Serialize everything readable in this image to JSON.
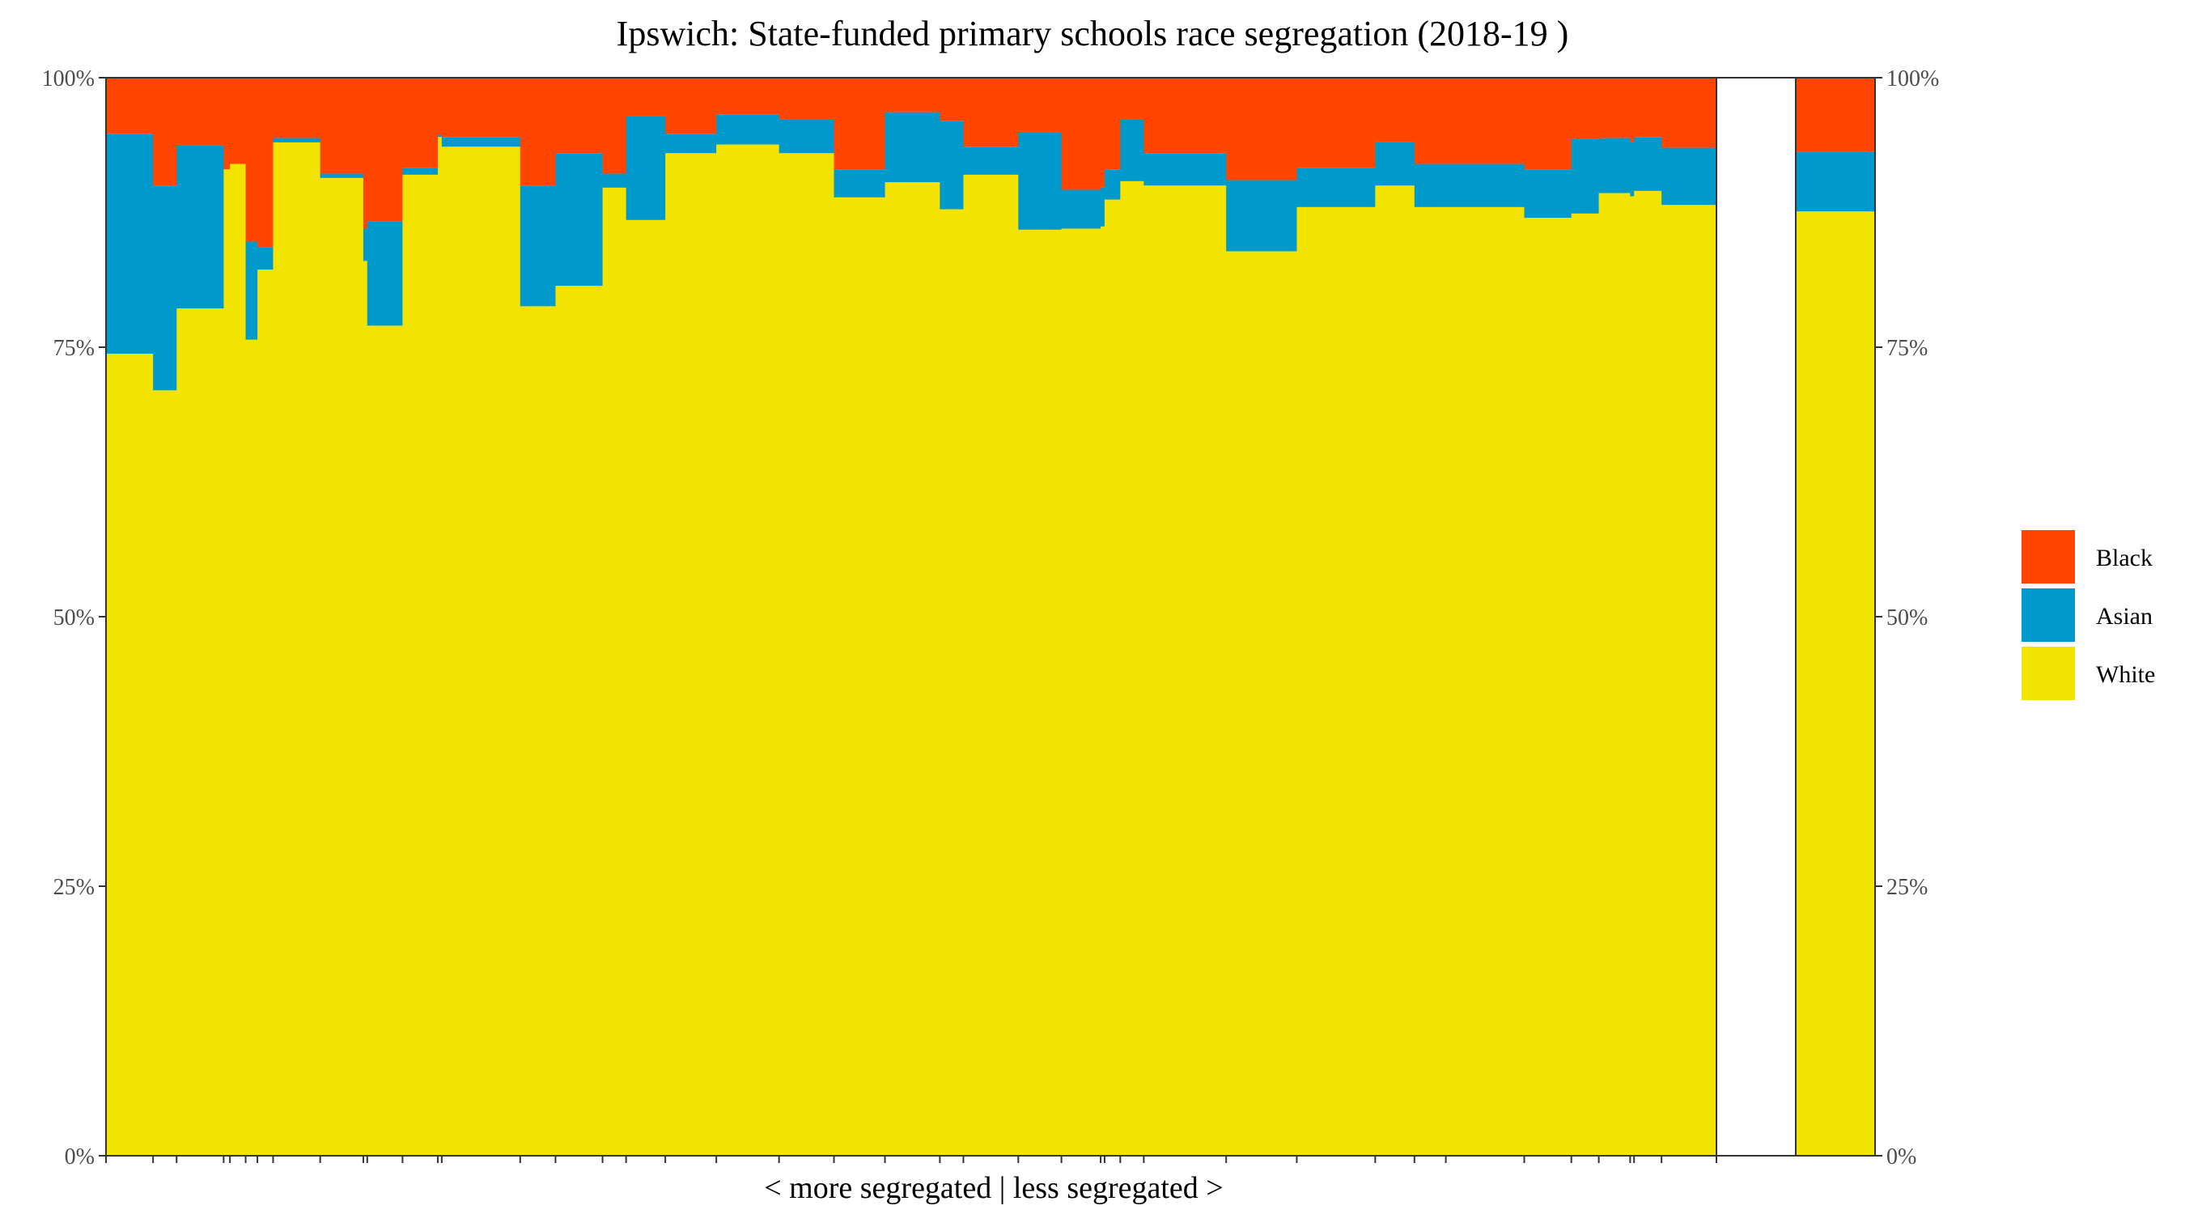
{
  "chart_data": {
    "type": "bar",
    "title": "Ipswich: State-funded primary schools race segregation (2018-19 )",
    "xlabel": "< more segregated | less segregated >",
    "ylabel": "",
    "ylim": [
      0,
      100
    ],
    "y_ticks": [
      "0%",
      "25%",
      "50%",
      "75%",
      "100%"
    ],
    "legend_position": "right",
    "grid": false,
    "colors": {
      "Black": "#FF4500",
      "Asian": "#0099CC",
      "White": "#F2E300"
    },
    "legend": [
      "Black",
      "Asian",
      "White"
    ],
    "schools": {
      "widths": [
        6.0,
        3.0,
        6.0,
        0.8,
        2.0,
        1.5,
        2.0,
        6.0,
        5.5,
        0.5,
        4.5,
        4.5,
        0.5,
        10.0,
        4.5,
        6.0,
        3.0,
        5.0,
        6.5,
        8.0,
        7.0,
        6.5,
        7.0,
        3.0,
        7.0,
        5.5,
        5.0,
        0.5,
        2.0,
        3.0,
        10.5,
        9.0,
        10.0,
        5.0,
        4.0,
        10.0,
        6.0,
        3.5,
        4.0,
        0.5,
        3.5,
        7.0
      ],
      "white": [
        74.4,
        71.0,
        78.6,
        91.5,
        92.0,
        75.7,
        82.2,
        94.0,
        90.7,
        83.0,
        77.0,
        91.0,
        94.5,
        93.6,
        78.8,
        80.7,
        89.8,
        86.8,
        93.0,
        93.8,
        93.0,
        88.9,
        90.3,
        87.8,
        91.0,
        85.9,
        86.0,
        86.2,
        88.7,
        90.4,
        90.0,
        83.9,
        88.0,
        90.0,
        88.0,
        88.0,
        87.0,
        87.4,
        89.3,
        89.0,
        89.5,
        88.2
      ],
      "asian": [
        20.4,
        19.0,
        15.1,
        0.0,
        0.0,
        9.1,
        2.1,
        0.4,
        0.4,
        3.0,
        9.7,
        0.6,
        0.2,
        0.9,
        11.2,
        12.3,
        1.3,
        9.6,
        1.8,
        2.8,
        3.1,
        2.6,
        6.5,
        8.2,
        2.6,
        9.0,
        3.6,
        3.6,
        2.8,
        5.7,
        3.0,
        6.6,
        3.6,
        4.0,
        4.0,
        4.0,
        4.5,
        6.9,
        5.1,
        5.0,
        5.0,
        5.3
      ],
      "black": [
        5.2,
        10.0,
        6.3,
        8.5,
        8.0,
        15.2,
        15.7,
        5.6,
        8.9,
        14.0,
        13.3,
        8.4,
        5.3,
        5.5,
        10.0,
        7.0,
        8.9,
        3.6,
        5.2,
        3.4,
        3.9,
        8.5,
        3.2,
        4.0,
        6.4,
        5.1,
        10.4,
        10.2,
        8.5,
        3.9,
        7.0,
        9.5,
        8.4,
        6.0,
        8.0,
        8.0,
        8.5,
        5.7,
        5.6,
        6.0,
        5.5,
        6.5
      ]
    },
    "overall": {
      "white": 87.6,
      "asian": 5.5,
      "black": 6.9
    }
  }
}
